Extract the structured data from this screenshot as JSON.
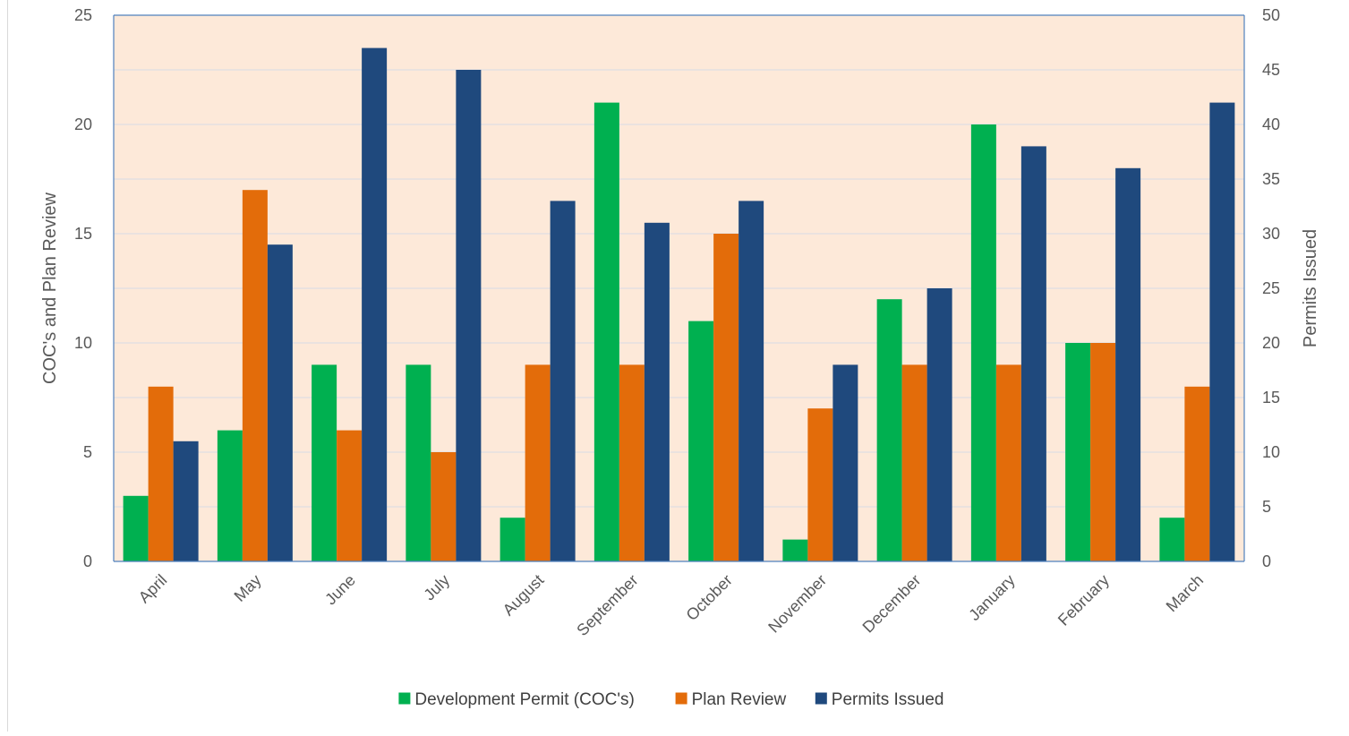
{
  "chart_data": {
    "type": "bar",
    "title": "",
    "categories": [
      "April",
      "May",
      "June",
      "July",
      "August",
      "September",
      "October",
      "November",
      "December",
      "January",
      "February",
      "March"
    ],
    "series": [
      {
        "name": "Development Permit (COC's)",
        "axis": "left",
        "color": "#00b050",
        "values": [
          3,
          6,
          9,
          9,
          2,
          21,
          11,
          1,
          12,
          20,
          10,
          2
        ]
      },
      {
        "name": "Plan Review",
        "axis": "left",
        "color": "#e36c0a",
        "values": [
          8,
          17,
          6,
          5,
          9,
          9,
          15,
          7,
          9,
          9,
          10,
          8
        ]
      },
      {
        "name": "Permits Issued",
        "axis": "right",
        "color": "#1f497d",
        "values": [
          11,
          29,
          47,
          45,
          33,
          31,
          33,
          18,
          25,
          38,
          36,
          42
        ]
      }
    ],
    "y_left": {
      "label": "COC's and Plan Review",
      "min": 0,
      "max": 25,
      "ticks": [
        0,
        5,
        10,
        15,
        20,
        25
      ]
    },
    "y_right": {
      "label": "Permits Issued",
      "min": 0,
      "max": 50,
      "ticks": [
        0,
        5,
        10,
        15,
        20,
        25,
        30,
        35,
        40,
        45,
        50
      ]
    },
    "plot_background": "#fde9d9",
    "grid": true,
    "legend_position": "bottom"
  }
}
